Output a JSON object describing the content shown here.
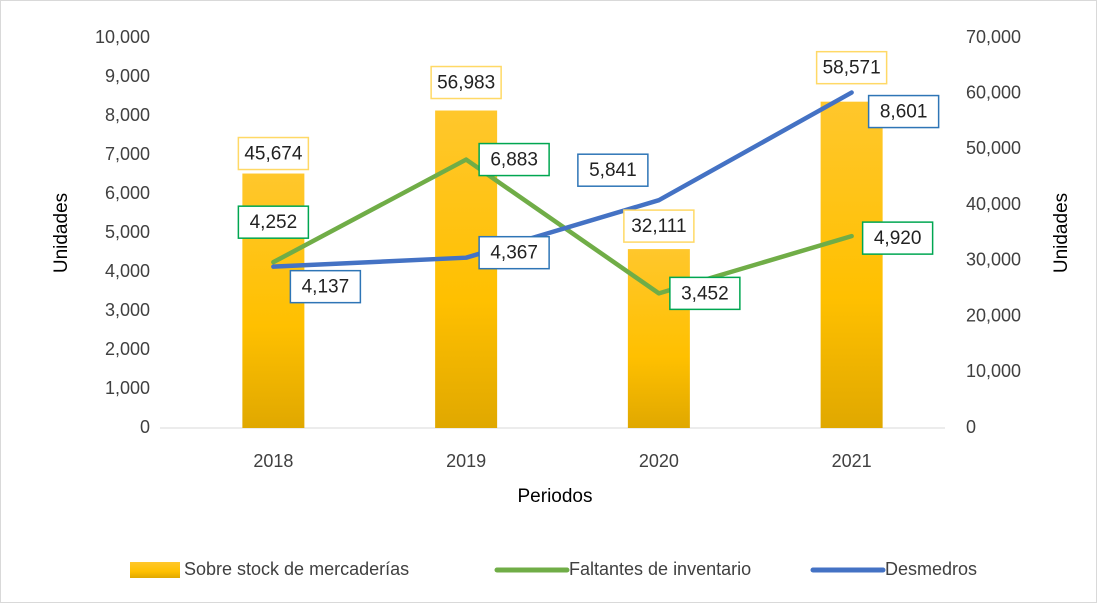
{
  "chart_data": {
    "type": "combo",
    "x_label": "Periodos",
    "y_label": "Unidades",
    "y2_label": "Unidades",
    "categories": [
      "2018",
      "2019",
      "2020",
      "2021"
    ],
    "ylim": [
      0,
      10000
    ],
    "yticks": [
      0,
      {
        "value": 1000,
        "label": "1,000"
      },
      {
        "value": 2000,
        "label": "2,000"
      },
      {
        "value": 3000,
        "label": "3,000"
      },
      {
        "value": 4000,
        "label": "4,000"
      },
      {
        "value": 5000,
        "label": "5,000"
      },
      {
        "value": 6000,
        "label": "6,000"
      },
      {
        "value": 7000,
        "label": "7,000"
      },
      {
        "value": 8000,
        "label": "8,000"
      },
      {
        "value": 9000,
        "label": "9,000"
      },
      {
        "value": 10000,
        "label": "10,000"
      }
    ],
    "y2lim": [
      0,
      70000
    ],
    "y2ticks": [
      0,
      {
        "value": 10000,
        "label": "10,000"
      },
      {
        "value": 20000,
        "label": "20,000"
      },
      {
        "value": 30000,
        "label": "30,000"
      },
      {
        "value": 40000,
        "label": "40,000"
      },
      {
        "value": 50000,
        "label": "50,000"
      },
      {
        "value": 60000,
        "label": "60,000"
      },
      {
        "value": 70000,
        "label": "70,000"
      }
    ],
    "legend": "bottom",
    "series": [
      {
        "name": "Sobre stock de mercaderías",
        "type": "bar",
        "axis": "y2",
        "color": "#ffc000",
        "values": [
          45674,
          56983,
          32111,
          58571
        ],
        "value_labels": [
          "45,674",
          "56,983",
          "32,111",
          "58,571"
        ]
      },
      {
        "name": "Faltantes de inventario",
        "type": "line",
        "color": "#70ad47",
        "values": [
          4252,
          6883,
          3452,
          4920
        ],
        "value_labels": [
          "4,252",
          "6,883",
          "3,452",
          "4,920"
        ]
      },
      {
        "name": "Desmedros",
        "type": "line",
        "color": "#4472c4",
        "values": [
          4137,
          4367,
          5841,
          8601
        ],
        "value_labels": [
          "4,137",
          "4,367",
          "5,841",
          "8,601"
        ]
      }
    ]
  }
}
